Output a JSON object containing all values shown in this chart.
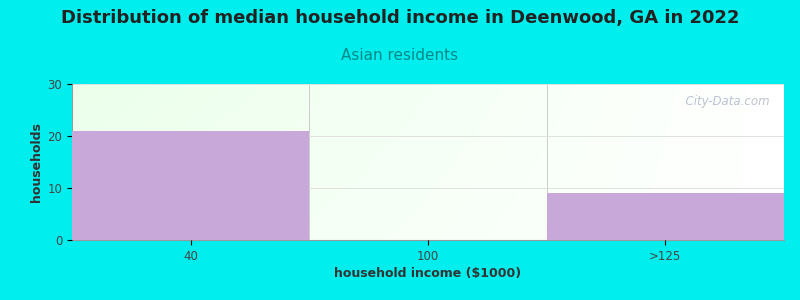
{
  "title": "Distribution of median household income in Deenwood, GA in 2022",
  "subtitle": "Asian residents",
  "xlabel": "household income ($1000)",
  "ylabel": "households",
  "bar_categories": [
    "40",
    "100",
    ">125"
  ],
  "bar_values": [
    21,
    0,
    9
  ],
  "bar_color": "#c8a8d8",
  "ylim": [
    0,
    30
  ],
  "yticks": [
    0,
    10,
    20,
    30
  ],
  "background_color": "#00eeee",
  "title_fontsize": 13,
  "subtitle_fontsize": 11,
  "subtitle_color": "#008888",
  "axis_label_fontsize": 9,
  "tick_fontsize": 8.5,
  "watermark_text": "  City-Data.com",
  "watermark_color": "#b0b8c8",
  "grid_color": "#e0e0e0",
  "spine_color": "#999999"
}
